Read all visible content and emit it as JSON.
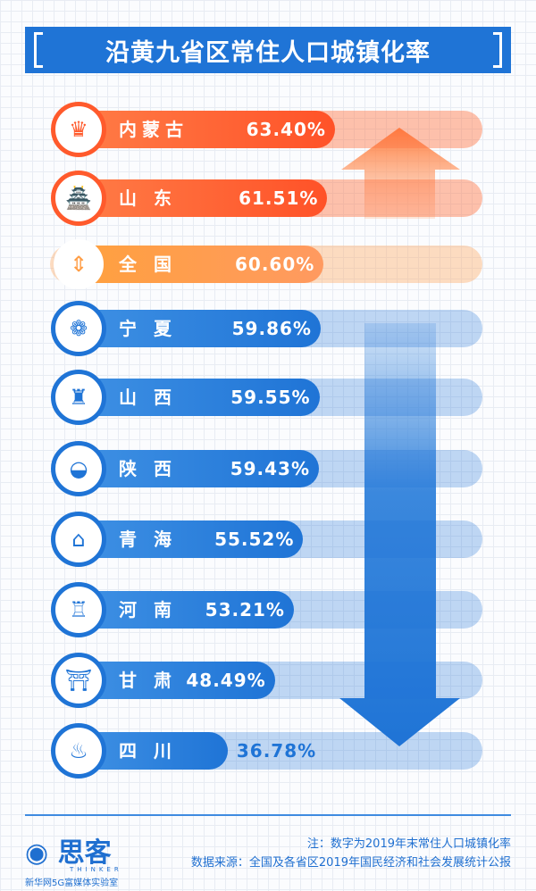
{
  "title": "沿黄九省区常住人口城镇化率",
  "chart_data": {
    "type": "bar",
    "title": "沿黄九省区常住人口城镇化率",
    "unit": "%",
    "categories": [
      "内蒙古",
      "山 东",
      "全 国",
      "宁 夏",
      "山 西",
      "陕 西",
      "青 海",
      "河 南",
      "甘 肃",
      "四 川"
    ],
    "values": [
      63.4,
      61.51,
      60.6,
      59.86,
      59.55,
      59.43,
      55.52,
      53.21,
      48.49,
      36.78
    ],
    "value_labels": [
      "63.40%",
      "61.51%",
      "60.60%",
      "59.86%",
      "59.55%",
      "59.43%",
      "55.52%",
      "53.21%",
      "48.49%",
      "36.78%"
    ],
    "groups": [
      "above",
      "above",
      "national",
      "below",
      "below",
      "below",
      "below",
      "below",
      "below",
      "below"
    ],
    "colors": {
      "above": "#ff5a2c",
      "national": "#ff9d45",
      "below": "#1f74d6"
    },
    "icons": [
      "mongolian-figure-icon",
      "shandong-landmark-icon",
      "updown-chevron-icon",
      "goji-berry-icon",
      "pagoda-icon",
      "shaanxi-food-icon",
      "qinghai-building-icon",
      "henan-landmark-icon",
      "gansu-gate-icon",
      "hotpot-icon"
    ]
  },
  "footer": {
    "note": "注：数字为2019年末常住人口城镇化率",
    "source": "数据来源：全国及各省区2019年国民经济和社会发展统计公报",
    "logo_text": "思客",
    "logo_en": "THINKER",
    "logo_sub": "新华网5G富媒体实验室"
  }
}
